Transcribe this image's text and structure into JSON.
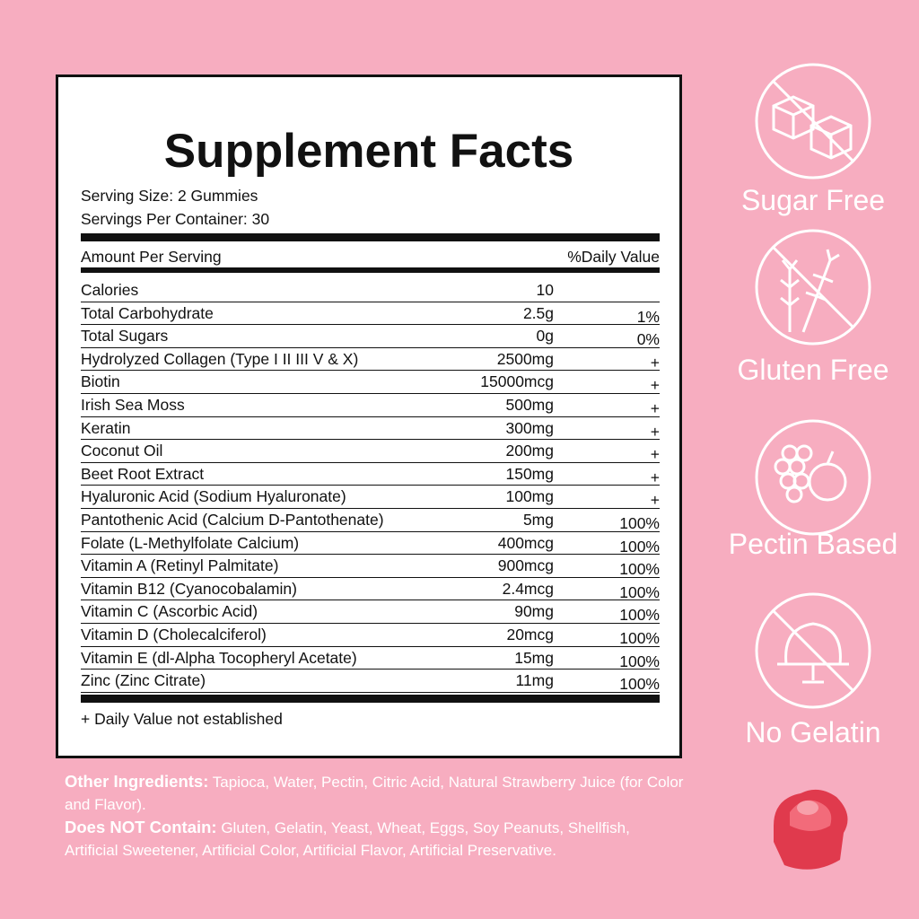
{
  "label": {
    "title": "Supplement Facts",
    "serving_size": "Serving Size: 2 Gummies",
    "servings_per_container": "Servings Per Container: 30",
    "header": [
      "Amount Per Serving",
      "%Daily Value"
    ],
    "rows": [
      [
        "Calories",
        "10",
        ""
      ],
      [
        "Total Carbohydrate",
        "2.5g",
        "1%"
      ],
      [
        "Total Sugars",
        "0g",
        "0%"
      ],
      [
        "Hydrolyzed Collagen (Type I II III V & X)",
        "2500mg",
        "+"
      ],
      [
        "Biotin",
        "15000mcg",
        "+"
      ],
      [
        "Irish Sea Moss",
        "500mg",
        "+"
      ],
      [
        "Keratin",
        "300mg",
        "+"
      ],
      [
        "Coconut Oil",
        "200mg",
        "+"
      ],
      [
        "Beet Root Extract",
        "150mg",
        "+"
      ],
      [
        "Hyaluronic Acid (Sodium Hyaluronate)",
        "100mg",
        "+"
      ],
      [
        "Pantothenic Acid (Calcium D-Pantothenate)",
        "5mg",
        "100%"
      ],
      [
        "Folate (L-Methylfolate Calcium)",
        "400mcg",
        "100%"
      ],
      [
        "Vitamin A (Retinyl Palmitate)",
        "900mcg",
        "100%"
      ],
      [
        "Vitamin B12 (Cyanocobalamin)",
        "2.4mcg",
        "100%"
      ],
      [
        "Vitamin C (Ascorbic Acid)",
        "90mg",
        "100%"
      ],
      [
        "Vitamin D (Cholecalciferol)",
        "20mcg",
        "100%"
      ],
      [
        "Vitamin E (dl-Alpha Tocopheryl Acetate)",
        "15mg",
        "100%"
      ],
      [
        "Zinc (Zinc Citrate)",
        "11mg",
        "100%"
      ]
    ],
    "footnote": "+ Daily Value not established"
  },
  "badges": [
    "Sugar Free",
    "Gluten Free",
    "Pectin Based",
    "No Gelatin"
  ],
  "other_ingredients": {
    "label": "Other Ingredients:",
    "text": "Tapioca, Water, Pectin, Citric Acid, Natural Strawberry Juice (for Color and Flavor)."
  },
  "does_not_contain": {
    "label": "Does NOT Contain:",
    "text": "Gluten, Gelatin, Yeast, Wheat, Eggs, Soy Peanuts, Shellfish, Artificial Sweetener, Artificial Color, Artificial Flavor, Artificial Preservative."
  }
}
